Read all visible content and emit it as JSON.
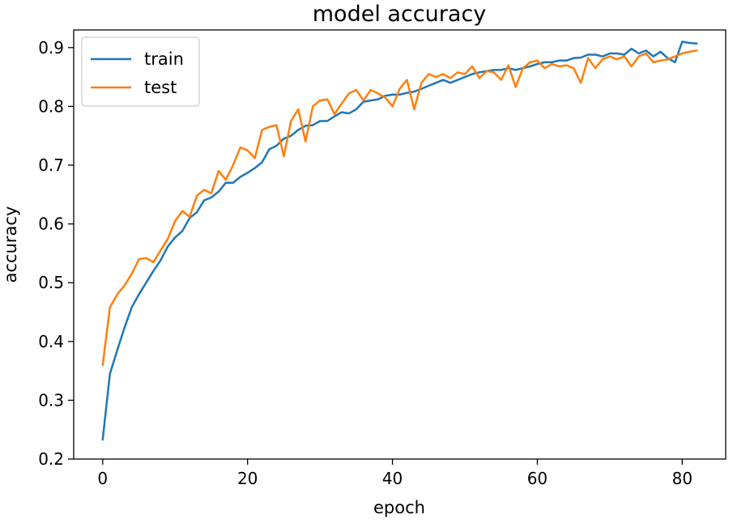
{
  "chart_data": {
    "type": "line",
    "title": "model accuracy",
    "xlabel": "epoch",
    "ylabel": "accuracy",
    "xlim": [
      -4,
      86
    ],
    "ylim": [
      0.2,
      0.93
    ],
    "xticks": [
      0,
      20,
      40,
      60,
      80
    ],
    "yticks": [
      0.2,
      0.3,
      0.4,
      0.5,
      0.6,
      0.7,
      0.8,
      0.9
    ],
    "grid": false,
    "legend_position": "top-left",
    "series": [
      {
        "name": "train",
        "color": "#1f77b4",
        "x": [
          0,
          1,
          2,
          3,
          4,
          5,
          6,
          7,
          8,
          9,
          10,
          11,
          12,
          13,
          14,
          15,
          16,
          17,
          18,
          19,
          20,
          21,
          22,
          23,
          24,
          25,
          26,
          27,
          28,
          29,
          30,
          31,
          32,
          33,
          34,
          35,
          36,
          37,
          38,
          39,
          40,
          41,
          42,
          43,
          44,
          45,
          46,
          47,
          48,
          49,
          50,
          51,
          52,
          53,
          54,
          55,
          56,
          57,
          58,
          59,
          60,
          61,
          62,
          63,
          64,
          65,
          66,
          67,
          68,
          69,
          70,
          71,
          72,
          73,
          74,
          75,
          76,
          77,
          78,
          79,
          80,
          81,
          82
        ],
        "values": [
          0.233,
          0.345,
          0.385,
          0.423,
          0.458,
          0.48,
          0.5,
          0.52,
          0.538,
          0.562,
          0.577,
          0.588,
          0.61,
          0.62,
          0.64,
          0.645,
          0.655,
          0.67,
          0.67,
          0.68,
          0.687,
          0.695,
          0.705,
          0.727,
          0.733,
          0.745,
          0.75,
          0.76,
          0.767,
          0.768,
          0.775,
          0.775,
          0.783,
          0.79,
          0.788,
          0.795,
          0.808,
          0.81,
          0.812,
          0.818,
          0.82,
          0.82,
          0.823,
          0.825,
          0.83,
          0.835,
          0.84,
          0.845,
          0.84,
          0.845,
          0.85,
          0.855,
          0.858,
          0.86,
          0.862,
          0.862,
          0.865,
          0.862,
          0.865,
          0.868,
          0.872,
          0.875,
          0.875,
          0.878,
          0.878,
          0.882,
          0.883,
          0.888,
          0.888,
          0.885,
          0.89,
          0.89,
          0.888,
          0.898,
          0.89,
          0.895,
          0.885,
          0.893,
          0.882,
          0.875,
          0.91,
          0.908,
          0.907
        ]
      },
      {
        "name": "test",
        "color": "#ff7f0e",
        "x": [
          0,
          1,
          2,
          3,
          4,
          5,
          6,
          7,
          8,
          9,
          10,
          11,
          12,
          13,
          14,
          15,
          16,
          17,
          18,
          19,
          20,
          21,
          22,
          23,
          24,
          25,
          26,
          27,
          28,
          29,
          30,
          31,
          32,
          33,
          34,
          35,
          36,
          37,
          38,
          39,
          40,
          41,
          42,
          43,
          44,
          45,
          46,
          47,
          48,
          49,
          50,
          51,
          52,
          53,
          54,
          55,
          56,
          57,
          58,
          59,
          60,
          61,
          62,
          63,
          64,
          65,
          66,
          67,
          68,
          69,
          70,
          71,
          72,
          73,
          74,
          75,
          76,
          77,
          78,
          79,
          80,
          81,
          82
        ],
        "values": [
          0.36,
          0.458,
          0.48,
          0.495,
          0.515,
          0.54,
          0.542,
          0.535,
          0.555,
          0.575,
          0.605,
          0.622,
          0.612,
          0.648,
          0.658,
          0.652,
          0.69,
          0.675,
          0.7,
          0.73,
          0.725,
          0.712,
          0.76,
          0.765,
          0.768,
          0.715,
          0.775,
          0.795,
          0.74,
          0.8,
          0.81,
          0.812,
          0.787,
          0.805,
          0.822,
          0.828,
          0.81,
          0.828,
          0.822,
          0.815,
          0.8,
          0.83,
          0.845,
          0.795,
          0.84,
          0.855,
          0.85,
          0.855,
          0.848,
          0.858,
          0.855,
          0.868,
          0.848,
          0.86,
          0.858,
          0.845,
          0.87,
          0.833,
          0.865,
          0.875,
          0.878,
          0.865,
          0.872,
          0.868,
          0.87,
          0.865,
          0.84,
          0.882,
          0.865,
          0.88,
          0.885,
          0.88,
          0.885,
          0.868,
          0.885,
          0.89,
          0.875,
          0.878,
          0.88,
          0.885,
          0.89,
          0.893,
          0.895
        ]
      }
    ]
  }
}
